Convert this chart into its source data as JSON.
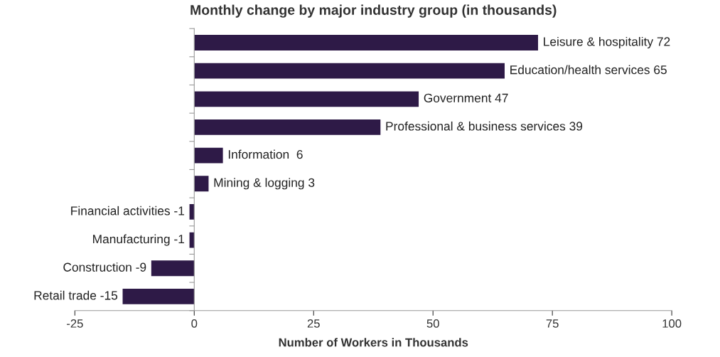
{
  "chart_data": {
    "type": "bar",
    "orientation": "horizontal",
    "title": "Monthly change by major industry group (in thousands)",
    "xlabel": "Number of Workers in Thousands",
    "categories": [
      "Leisure & hospitality 72",
      "Education/health services 65",
      "Government 47",
      "Professional & business services 39",
      "Information  6",
      "Mining & logging 3",
      "Financial activities -1",
      "Manufacturing -1",
      "Construction -9",
      "Retail trade -15"
    ],
    "values": [
      72,
      65,
      47,
      39,
      6,
      3,
      -1,
      -1,
      -9,
      -15
    ],
    "color": "#2e1a47",
    "xlim": [
      -25,
      100
    ],
    "xticks": [
      -25,
      0,
      25,
      50,
      75,
      100
    ],
    "tick_labels": "x",
    "grid": false,
    "legend": false
  }
}
